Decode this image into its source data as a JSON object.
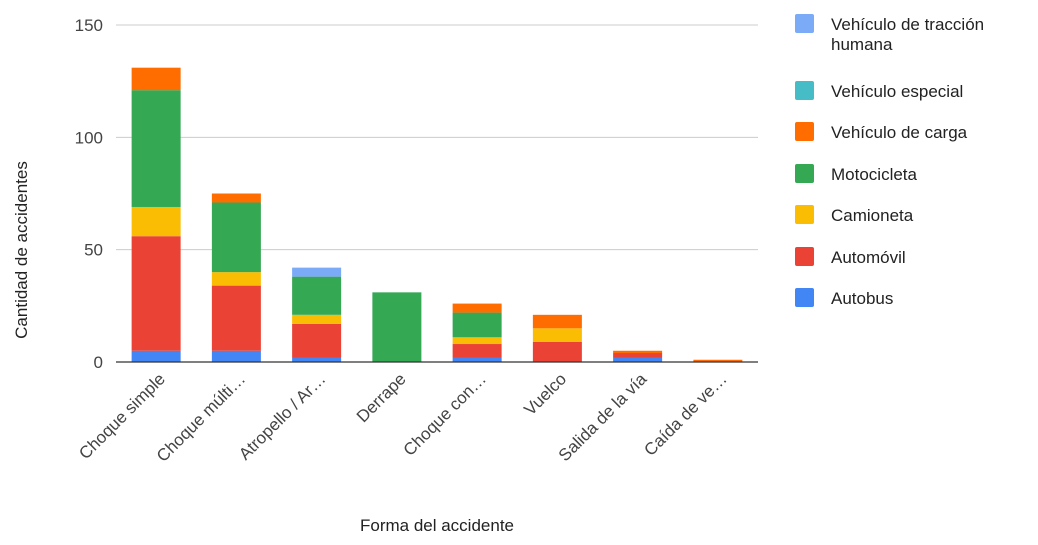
{
  "chart_data": {
    "type": "bar",
    "stacked": true,
    "title": "",
    "xlabel": "Forma del accidente",
    "ylabel": "Cantidad de accidentes",
    "ylim": [
      0,
      150
    ],
    "yticks": [
      0,
      50,
      100,
      150
    ],
    "grid": true,
    "legend_position": "right",
    "categories": [
      "Choque simple",
      "Choque múlti…",
      "Atropello / Ar…",
      "Derrape",
      "Choque con…",
      "Vuelco",
      "Salida de la vía",
      "Caída de ve…"
    ],
    "series": [
      {
        "name": "Autobus",
        "color": "#4285f4",
        "values": [
          5,
          5,
          2,
          0,
          2,
          0,
          2,
          0
        ]
      },
      {
        "name": "Automóvil",
        "color": "#ea4335",
        "values": [
          51,
          29,
          15,
          0,
          6,
          9,
          2,
          0
        ]
      },
      {
        "name": "Camioneta",
        "color": "#fbbc04",
        "values": [
          13,
          6,
          4,
          0,
          3,
          6,
          0,
          0
        ]
      },
      {
        "name": "Motocicleta",
        "color": "#34a853",
        "values": [
          52,
          31,
          17,
          31,
          11,
          0,
          0,
          0
        ]
      },
      {
        "name": "Vehículo de carga",
        "color": "#ff6d01",
        "values": [
          10,
          4,
          0,
          0,
          4,
          6,
          1,
          1
        ]
      },
      {
        "name": "Vehículo especial",
        "color": "#46bdc6",
        "values": [
          0,
          0,
          0,
          0,
          0,
          0,
          0,
          0
        ]
      },
      {
        "name": "Vehículo de tracción humana",
        "color": "#7baaf7",
        "values": [
          0,
          0,
          4,
          0,
          0,
          0,
          0,
          0
        ]
      }
    ],
    "legend_lines": [
      [
        "Vehículo de tracción",
        "humana"
      ],
      [
        "Vehículo especial"
      ],
      [
        "Vehículo de carga"
      ],
      [
        "Motocicleta"
      ],
      [
        "Camioneta"
      ],
      [
        "Automóvil"
      ],
      [
        "Autobus"
      ]
    ]
  }
}
